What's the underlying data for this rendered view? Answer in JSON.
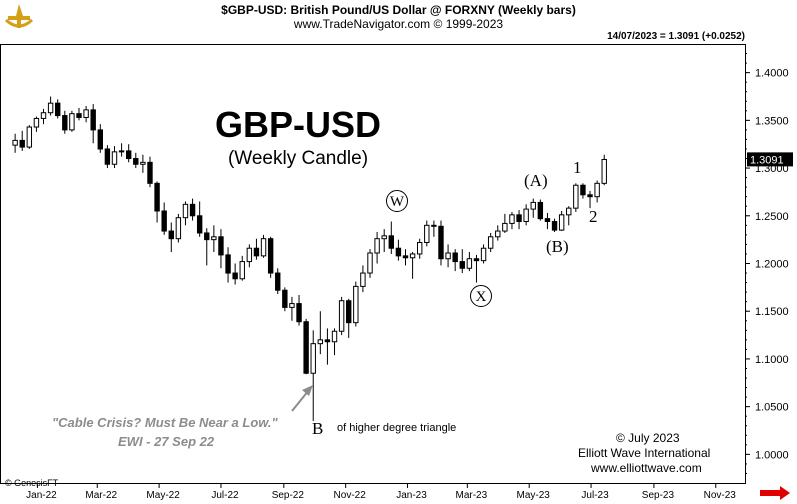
{
  "header": {
    "line1": "$GBP-USD:  British Pound/US Dollar @ FORXNY  (Weekly bars)",
    "line2": "www.TradeNavigator.com © 1999-2023",
    "last_info": "14/07/2023 = 1.3091 (+0.0252)"
  },
  "title": {
    "main": "GBP-USD",
    "sub": "(Weekly Candle)"
  },
  "annotations": {
    "quote_line1": "\"Cable Crisis? Must Be Near a Low.\"",
    "quote_line2": "EWI - 27 Sep 22",
    "triangle_note": "of higher degree triangle"
  },
  "wave_labels": {
    "B": "B",
    "W": "W",
    "X": "X",
    "A": "(A)",
    "Bparen": "(B)",
    "one": "1",
    "two": "2"
  },
  "footer": {
    "copyright": "© July 2023",
    "company": "Elliott Wave International",
    "url": "www.elliottwave.com",
    "source": "© GenesisFT"
  },
  "colors": {
    "up": "#ffffff",
    "down": "#000000",
    "last_badge": "#000000",
    "scroll_arrow": "#e00000",
    "logo": "#d4a017"
  },
  "chart_data": {
    "type": "candlestick",
    "frequency": "weekly",
    "ylim": [
      0.97,
      1.43
    ],
    "yticks": [
      "1.4000",
      "1.3500",
      "1.3000",
      "1.2500",
      "1.2000",
      "1.1500",
      "1.1000",
      "1.0500",
      "1.0000"
    ],
    "ytick_values": [
      1.4,
      1.35,
      1.3,
      1.25,
      1.2,
      1.15,
      1.1,
      1.05,
      1.0
    ],
    "xticks": [
      "Jan-22",
      "Mar-22",
      "May-22",
      "Jul-22",
      "Sep-22",
      "Nov-22",
      "Jan-23",
      "Mar-23",
      "May-23",
      "Jul-23",
      "Sep-23",
      "Nov-23"
    ],
    "last_value": "1.3091",
    "candles": [
      {
        "date": "2021-12-10",
        "o": 1.324,
        "h": 1.336,
        "l": 1.316,
        "c": 1.329
      },
      {
        "date": "2021-12-17",
        "o": 1.329,
        "h": 1.339,
        "l": 1.318,
        "c": 1.322
      },
      {
        "date": "2021-12-24",
        "o": 1.322,
        "h": 1.345,
        "l": 1.32,
        "c": 1.343
      },
      {
        "date": "2021-12-31",
        "o": 1.343,
        "h": 1.354,
        "l": 1.338,
        "c": 1.352
      },
      {
        "date": "2022-01-07",
        "o": 1.352,
        "h": 1.362,
        "l": 1.346,
        "c": 1.358
      },
      {
        "date": "2022-01-14",
        "o": 1.358,
        "h": 1.375,
        "l": 1.355,
        "c": 1.368
      },
      {
        "date": "2022-01-21",
        "o": 1.368,
        "h": 1.372,
        "l": 1.352,
        "c": 1.355
      },
      {
        "date": "2022-01-28",
        "o": 1.355,
        "h": 1.36,
        "l": 1.336,
        "c": 1.34
      },
      {
        "date": "2022-02-04",
        "o": 1.34,
        "h": 1.36,
        "l": 1.338,
        "c": 1.357
      },
      {
        "date": "2022-02-11",
        "o": 1.357,
        "h": 1.363,
        "l": 1.35,
        "c": 1.353
      },
      {
        "date": "2022-02-18",
        "o": 1.353,
        "h": 1.365,
        "l": 1.348,
        "c": 1.361
      },
      {
        "date": "2022-02-25",
        "o": 1.361,
        "h": 1.367,
        "l": 1.326,
        "c": 1.34
      },
      {
        "date": "2022-03-04",
        "o": 1.34,
        "h": 1.346,
        "l": 1.316,
        "c": 1.32
      },
      {
        "date": "2022-03-11",
        "o": 1.32,
        "h": 1.324,
        "l": 1.3,
        "c": 1.304
      },
      {
        "date": "2022-03-18",
        "o": 1.304,
        "h": 1.323,
        "l": 1.3,
        "c": 1.317
      },
      {
        "date": "2022-03-25",
        "o": 1.317,
        "h": 1.326,
        "l": 1.312,
        "c": 1.318
      },
      {
        "date": "2022-04-01",
        "o": 1.318,
        "h": 1.325,
        "l": 1.306,
        "c": 1.31
      },
      {
        "date": "2022-04-08",
        "o": 1.31,
        "h": 1.316,
        "l": 1.3,
        "c": 1.304
      },
      {
        "date": "2022-04-15",
        "o": 1.304,
        "h": 1.314,
        "l": 1.295,
        "c": 1.306
      },
      {
        "date": "2022-04-22",
        "o": 1.306,
        "h": 1.312,
        "l": 1.28,
        "c": 1.284
      },
      {
        "date": "2022-04-29",
        "o": 1.284,
        "h": 1.286,
        "l": 1.243,
        "c": 1.255
      },
      {
        "date": "2022-05-06",
        "o": 1.255,
        "h": 1.264,
        "l": 1.23,
        "c": 1.234
      },
      {
        "date": "2022-05-13",
        "o": 1.234,
        "h": 1.243,
        "l": 1.212,
        "c": 1.226
      },
      {
        "date": "2022-05-20",
        "o": 1.226,
        "h": 1.252,
        "l": 1.222,
        "c": 1.248
      },
      {
        "date": "2022-05-27",
        "o": 1.248,
        "h": 1.265,
        "l": 1.24,
        "c": 1.262
      },
      {
        "date": "2022-06-03",
        "o": 1.262,
        "h": 1.268,
        "l": 1.245,
        "c": 1.25
      },
      {
        "date": "2022-06-10",
        "o": 1.25,
        "h": 1.265,
        "l": 1.228,
        "c": 1.232
      },
      {
        "date": "2022-06-17",
        "o": 1.232,
        "h": 1.237,
        "l": 1.198,
        "c": 1.225
      },
      {
        "date": "2022-06-24",
        "o": 1.225,
        "h": 1.24,
        "l": 1.212,
        "c": 1.228
      },
      {
        "date": "2022-07-01",
        "o": 1.228,
        "h": 1.236,
        "l": 1.195,
        "c": 1.209
      },
      {
        "date": "2022-07-08",
        "o": 1.209,
        "h": 1.217,
        "l": 1.18,
        "c": 1.19
      },
      {
        "date": "2022-07-15",
        "o": 1.19,
        "h": 1.2,
        "l": 1.178,
        "c": 1.184
      },
      {
        "date": "2022-07-22",
        "o": 1.184,
        "h": 1.208,
        "l": 1.182,
        "c": 1.202
      },
      {
        "date": "2022-07-29",
        "o": 1.202,
        "h": 1.22,
        "l": 1.196,
        "c": 1.216
      },
      {
        "date": "2022-08-05",
        "o": 1.216,
        "h": 1.226,
        "l": 1.204,
        "c": 1.208
      },
      {
        "date": "2022-08-12",
        "o": 1.208,
        "h": 1.23,
        "l": 1.206,
        "c": 1.226
      },
      {
        "date": "2022-08-19",
        "o": 1.226,
        "h": 1.228,
        "l": 1.185,
        "c": 1.19
      },
      {
        "date": "2022-08-26",
        "o": 1.19,
        "h": 1.195,
        "l": 1.168,
        "c": 1.172
      },
      {
        "date": "2022-09-02",
        "o": 1.172,
        "h": 1.175,
        "l": 1.15,
        "c": 1.154
      },
      {
        "date": "2022-09-09",
        "o": 1.154,
        "h": 1.165,
        "l": 1.14,
        "c": 1.158
      },
      {
        "date": "2022-09-16",
        "o": 1.158,
        "h": 1.167,
        "l": 1.135,
        "c": 1.139
      },
      {
        "date": "2022-09-23",
        "o": 1.139,
        "h": 1.142,
        "l": 1.084,
        "c": 1.085
      },
      {
        "date": "2022-09-30",
        "o": 1.085,
        "h": 1.13,
        "l": 1.035,
        "c": 1.116
      },
      {
        "date": "2022-10-07",
        "o": 1.116,
        "h": 1.15,
        "l": 1.105,
        "c": 1.12
      },
      {
        "date": "2022-10-14",
        "o": 1.12,
        "h": 1.132,
        "l": 1.094,
        "c": 1.118
      },
      {
        "date": "2022-10-21",
        "o": 1.118,
        "h": 1.132,
        "l": 1.104,
        "c": 1.129
      },
      {
        "date": "2022-10-28",
        "o": 1.129,
        "h": 1.165,
        "l": 1.125,
        "c": 1.161
      },
      {
        "date": "2022-11-04",
        "o": 1.161,
        "h": 1.163,
        "l": 1.122,
        "c": 1.138
      },
      {
        "date": "2022-11-11",
        "o": 1.138,
        "h": 1.181,
        "l": 1.134,
        "c": 1.176
      },
      {
        "date": "2022-11-18",
        "o": 1.176,
        "h": 1.198,
        "l": 1.17,
        "c": 1.19
      },
      {
        "date": "2022-11-25",
        "o": 1.19,
        "h": 1.215,
        "l": 1.185,
        "c": 1.211
      },
      {
        "date": "2022-12-02",
        "o": 1.211,
        "h": 1.233,
        "l": 1.2,
        "c": 1.226
      },
      {
        "date": "2022-12-09",
        "o": 1.226,
        "h": 1.236,
        "l": 1.212,
        "c": 1.229
      },
      {
        "date": "2022-12-16",
        "o": 1.229,
        "h": 1.244,
        "l": 1.21,
        "c": 1.216
      },
      {
        "date": "2022-12-23",
        "o": 1.216,
        "h": 1.225,
        "l": 1.203,
        "c": 1.208
      },
      {
        "date": "2022-12-30",
        "o": 1.208,
        "h": 1.215,
        "l": 1.198,
        "c": 1.206
      },
      {
        "date": "2023-01-06",
        "o": 1.206,
        "h": 1.212,
        "l": 1.184,
        "c": 1.21
      },
      {
        "date": "2023-01-13",
        "o": 1.21,
        "h": 1.226,
        "l": 1.205,
        "c": 1.222
      },
      {
        "date": "2023-01-20",
        "o": 1.222,
        "h": 1.245,
        "l": 1.218,
        "c": 1.24
      },
      {
        "date": "2023-01-27",
        "o": 1.24,
        "h": 1.245,
        "l": 1.228,
        "c": 1.239
      },
      {
        "date": "2023-02-03",
        "o": 1.239,
        "h": 1.245,
        "l": 1.198,
        "c": 1.205
      },
      {
        "date": "2023-02-10",
        "o": 1.205,
        "h": 1.22,
        "l": 1.196,
        "c": 1.211
      },
      {
        "date": "2023-02-17",
        "o": 1.211,
        "h": 1.215,
        "l": 1.192,
        "c": 1.202
      },
      {
        "date": "2023-02-24",
        "o": 1.202,
        "h": 1.215,
        "l": 1.19,
        "c": 1.195
      },
      {
        "date": "2023-03-03",
        "o": 1.195,
        "h": 1.212,
        "l": 1.192,
        "c": 1.205
      },
      {
        "date": "2023-03-10",
        "o": 1.205,
        "h": 1.209,
        "l": 1.18,
        "c": 1.203
      },
      {
        "date": "2023-03-17",
        "o": 1.203,
        "h": 1.22,
        "l": 1.2,
        "c": 1.216
      },
      {
        "date": "2023-03-24",
        "o": 1.216,
        "h": 1.232,
        "l": 1.212,
        "c": 1.228
      },
      {
        "date": "2023-03-31",
        "o": 1.228,
        "h": 1.24,
        "l": 1.224,
        "c": 1.234
      },
      {
        "date": "2023-04-07",
        "o": 1.234,
        "h": 1.252,
        "l": 1.232,
        "c": 1.242
      },
      {
        "date": "2023-04-14",
        "o": 1.242,
        "h": 1.254,
        "l": 1.236,
        "c": 1.251
      },
      {
        "date": "2023-04-21",
        "o": 1.251,
        "h": 1.256,
        "l": 1.236,
        "c": 1.244
      },
      {
        "date": "2023-04-28",
        "o": 1.244,
        "h": 1.262,
        "l": 1.24,
        "c": 1.257
      },
      {
        "date": "2023-05-05",
        "o": 1.257,
        "h": 1.268,
        "l": 1.248,
        "c": 1.264
      },
      {
        "date": "2023-05-12",
        "o": 1.264,
        "h": 1.267,
        "l": 1.245,
        "c": 1.247
      },
      {
        "date": "2023-05-19",
        "o": 1.247,
        "h": 1.253,
        "l": 1.236,
        "c": 1.244
      },
      {
        "date": "2023-05-26",
        "o": 1.244,
        "h": 1.247,
        "l": 1.233,
        "c": 1.235
      },
      {
        "date": "2023-06-02",
        "o": 1.235,
        "h": 1.255,
        "l": 1.234,
        "c": 1.251
      },
      {
        "date": "2023-06-09",
        "o": 1.251,
        "h": 1.26,
        "l": 1.24,
        "c": 1.258
      },
      {
        "date": "2023-06-16",
        "o": 1.258,
        "h": 1.284,
        "l": 1.254,
        "c": 1.282
      },
      {
        "date": "2023-06-23",
        "o": 1.282,
        "h": 1.284,
        "l": 1.268,
        "c": 1.272
      },
      {
        "date": "2023-06-30",
        "o": 1.272,
        "h": 1.276,
        "l": 1.258,
        "c": 1.27
      },
      {
        "date": "2023-07-07",
        "o": 1.27,
        "h": 1.287,
        "l": 1.264,
        "c": 1.284
      },
      {
        "date": "2023-07-14",
        "o": 1.284,
        "h": 1.314,
        "l": 1.282,
        "c": 1.309
      }
    ]
  }
}
